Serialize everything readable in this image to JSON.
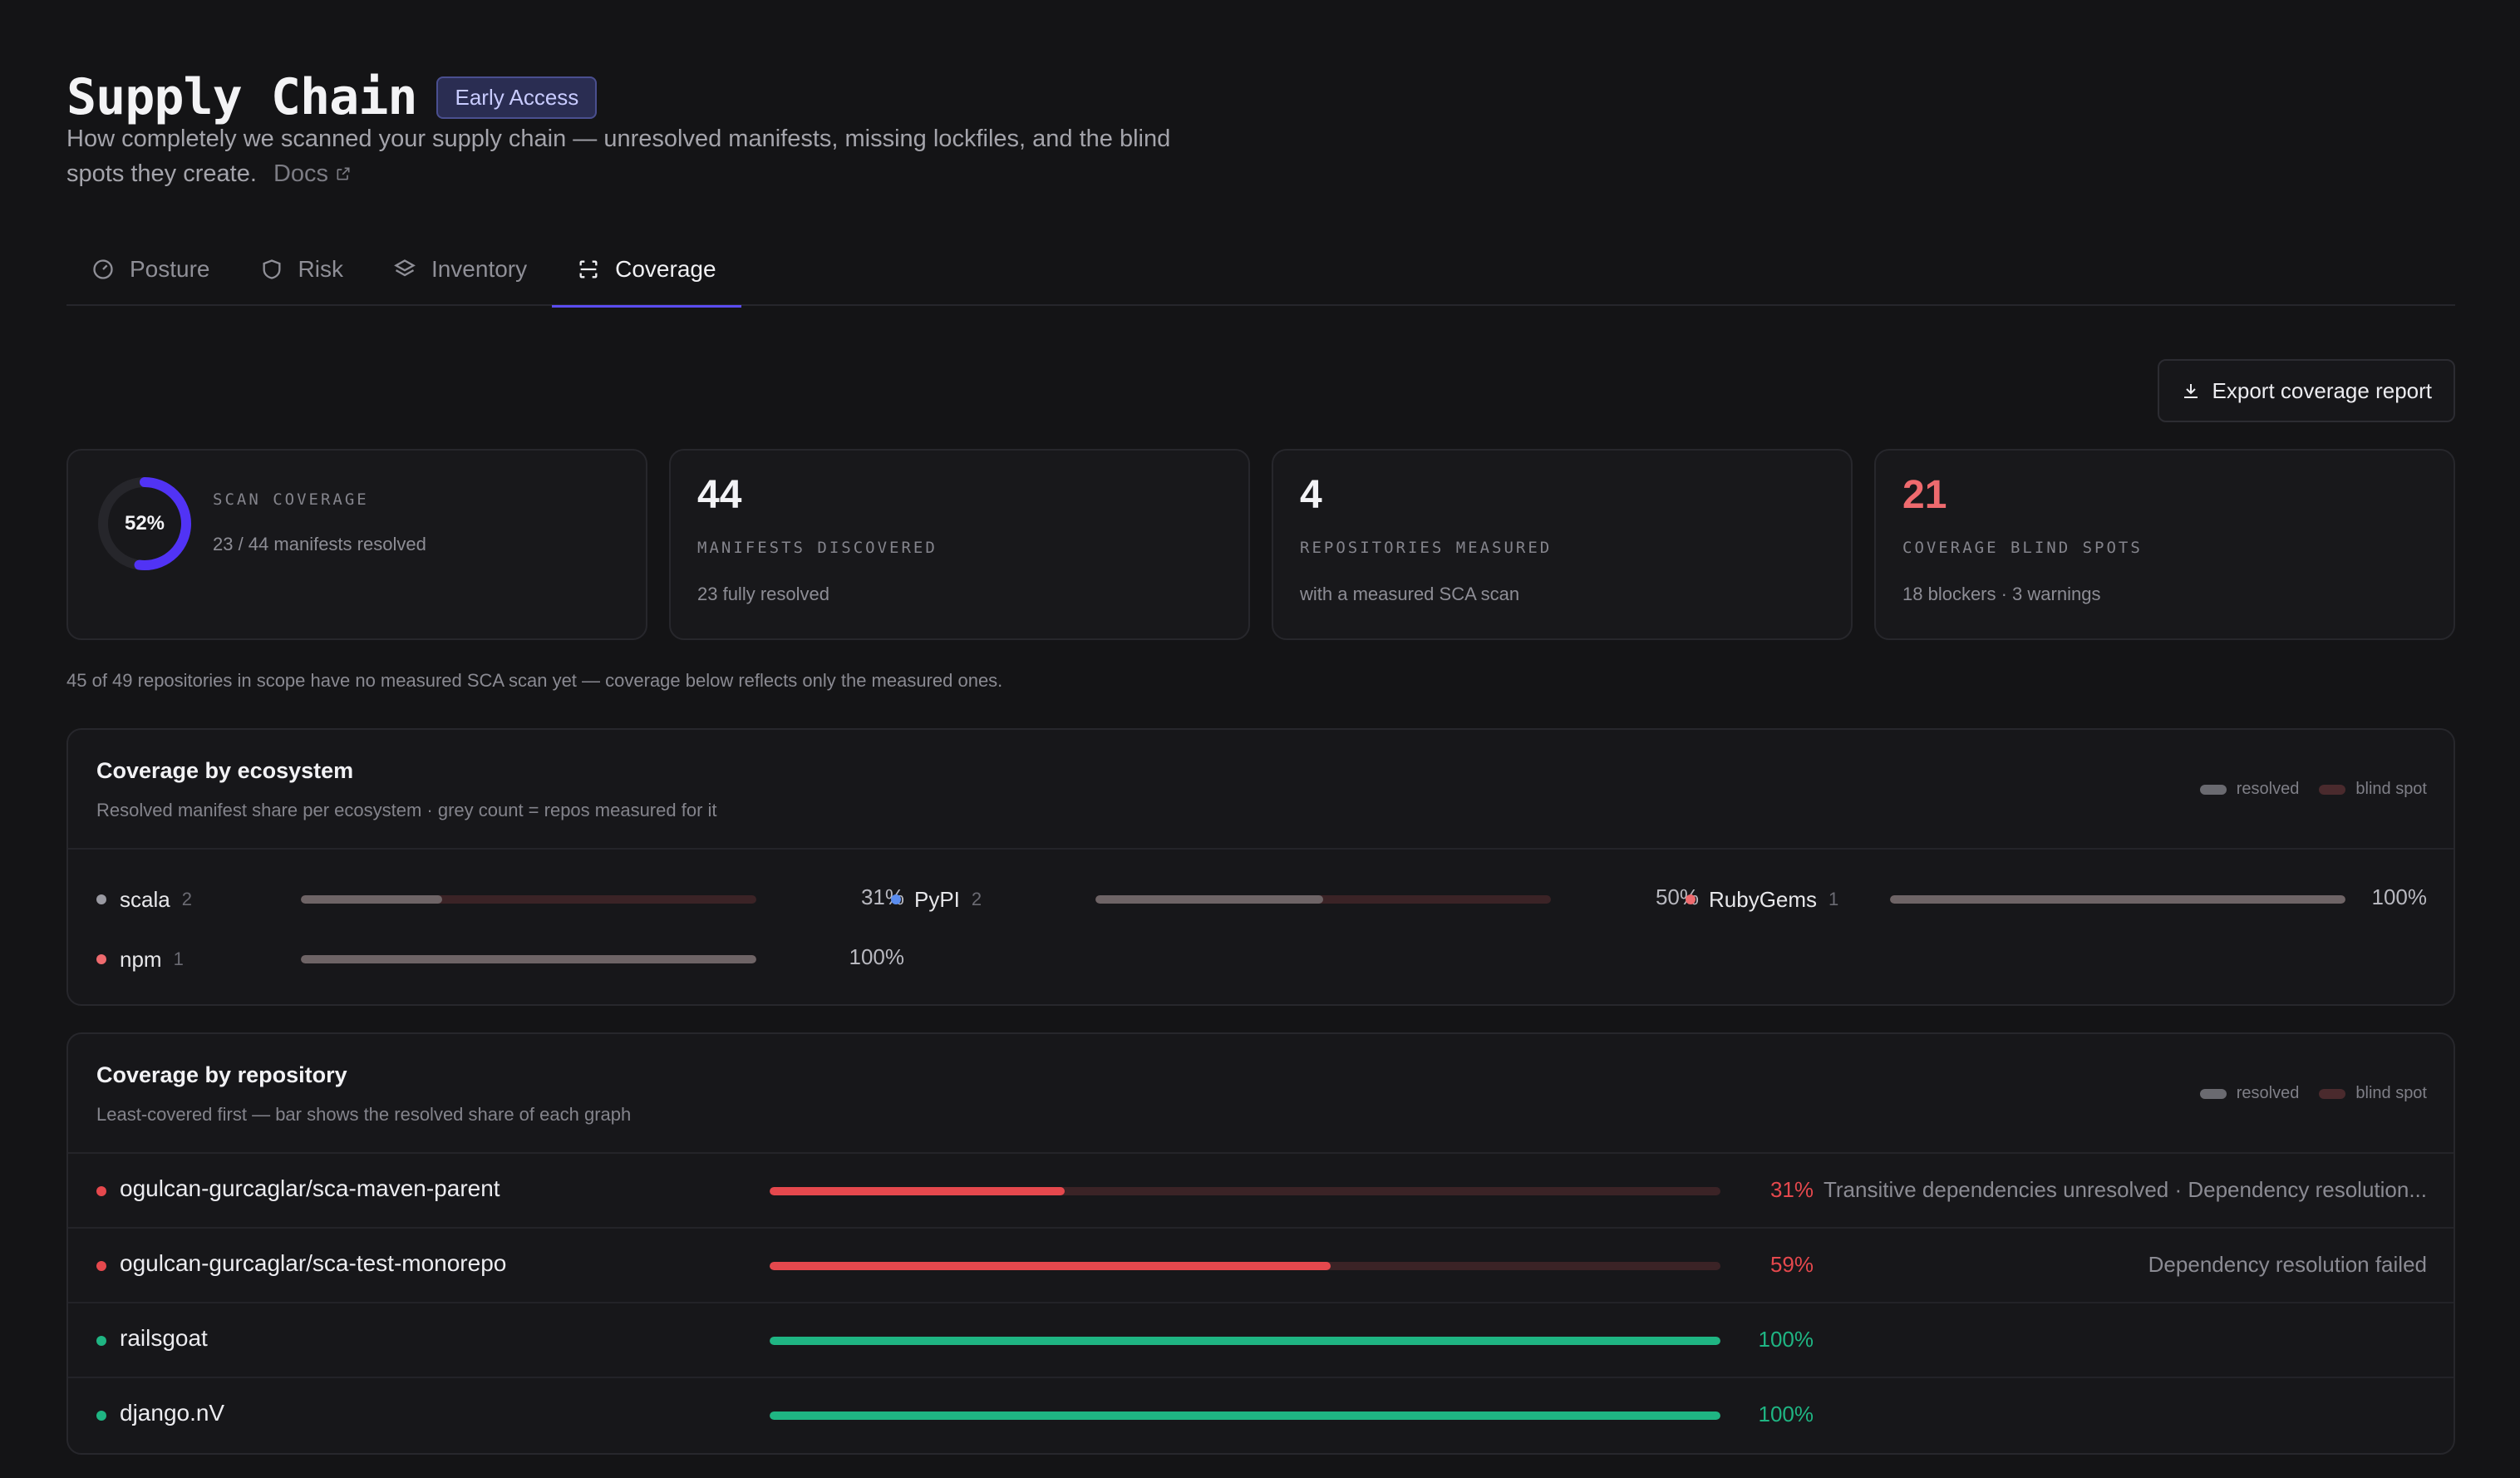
{
  "header": {
    "title": "Supply Chain",
    "badge": "Early Access",
    "subtitle": "How completely we scanned your supply chain — unresolved manifests, missing lockfiles, and the blind spots they create.",
    "docs_label": "Docs"
  },
  "tabs": [
    {
      "label": "Posture",
      "icon": "gauge-icon",
      "active": false
    },
    {
      "label": "Risk",
      "icon": "shield-icon",
      "active": false
    },
    {
      "label": "Inventory",
      "icon": "layers-icon",
      "active": false
    },
    {
      "label": "Coverage",
      "icon": "scan-icon",
      "active": true
    }
  ],
  "toolbar": {
    "export_label": "Export coverage report"
  },
  "stats": {
    "scan_coverage": {
      "percent_label": "52%",
      "percent": 52,
      "label": "SCAN COVERAGE",
      "sub": "23 / 44 manifests resolved"
    },
    "manifests": {
      "value": "44",
      "label": "MANIFESTS DISCOVERED",
      "sub": "23 fully resolved"
    },
    "repos": {
      "value": "4",
      "label": "REPOSITORIES MEASURED",
      "sub": "with a measured SCA scan"
    },
    "blind_spots": {
      "value": "21",
      "label": "COVERAGE BLIND SPOTS",
      "sub": "18 blockers · 3 warnings"
    }
  },
  "note": "45 of 49 repositories in scope have no measured SCA scan yet — coverage below reflects only the measured ones.",
  "ecosystem_panel": {
    "title": "Coverage by ecosystem",
    "desc": "Resolved manifest share per ecosystem · grey count = repos measured for it",
    "legend_resolved": "resolved",
    "legend_blind": "blind spot",
    "items": [
      {
        "name": "scala",
        "count": "2",
        "percent_label": "31%",
        "percent": 31,
        "dot": "#9a9aa2"
      },
      {
        "name": "PyPI",
        "count": "2",
        "percent_label": "50%",
        "percent": 50,
        "dot": "#5b8def"
      },
      {
        "name": "RubyGems",
        "count": "1",
        "percent_label": "100%",
        "percent": 100,
        "dot": "#ee6a6e"
      },
      {
        "name": "npm",
        "count": "1",
        "percent_label": "100%",
        "percent": 100,
        "dot": "#ee6a6e"
      }
    ]
  },
  "repo_panel": {
    "title": "Coverage by repository",
    "desc": "Least-covered first — bar shows the resolved share of each graph",
    "legend_resolved": "resolved",
    "legend_blind": "blind spot",
    "rows": [
      {
        "name": "ogulcan-gurcaglar/sca-maven-parent",
        "percent_label": "31%",
        "percent": 31,
        "status": "Transitive dependencies unresolved · Dependency resolution...",
        "color": "#e5484d"
      },
      {
        "name": "ogulcan-gurcaglar/sca-test-monorepo",
        "percent_label": "59%",
        "percent": 59,
        "status": "Dependency resolution failed",
        "color": "#e5484d"
      },
      {
        "name": "railsgoat",
        "percent_label": "100%",
        "percent": 100,
        "status": "",
        "color": "#1fb583"
      },
      {
        "name": "django.nV",
        "percent_label": "100%",
        "percent": 100,
        "status": "",
        "color": "#1fb583"
      }
    ]
  },
  "colors": {
    "accent": "#5b4df0",
    "danger": "#e5484d",
    "success": "#1fb583",
    "neutral_fill": "#6e6466"
  }
}
